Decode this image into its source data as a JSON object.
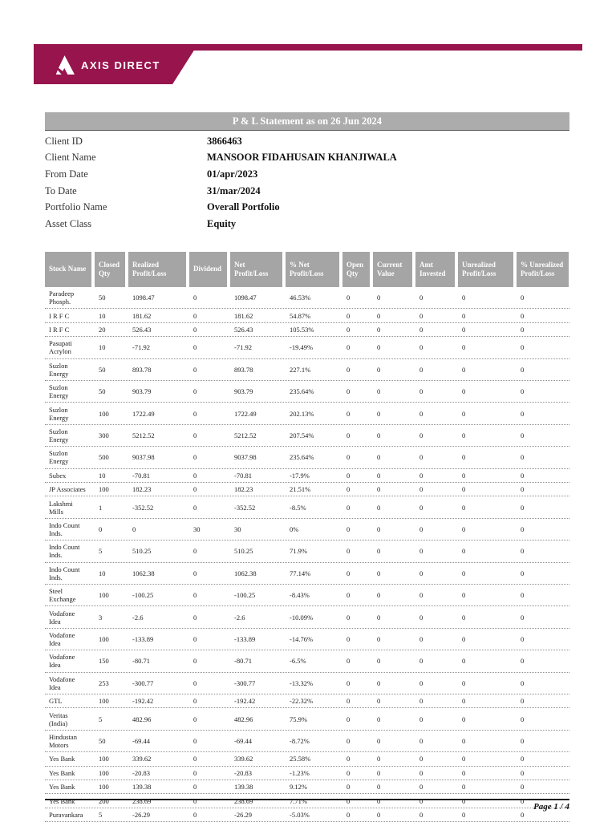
{
  "brand": {
    "name": "AXIS DIRECT",
    "color": "#97144D",
    "logo_icon": "axis-triangle-logo"
  },
  "title_bar": {
    "text": "P & L Statement as on 26 Jun 2024",
    "bg": "#ACACAC"
  },
  "client_info": {
    "rows": [
      {
        "label": "Client ID",
        "value": "3866463"
      },
      {
        "label": "Client Name",
        "value": "MANSOOR FIDAHUSAIN KHANJIWALA"
      },
      {
        "label": "From Date",
        "value": "01/apr/2023"
      },
      {
        "label": "To Date",
        "value": "31/mar/2024"
      },
      {
        "label": "Portfolio Name",
        "value": "Overall Portfolio"
      },
      {
        "label": "Asset Class",
        "value": "Equity"
      }
    ]
  },
  "table": {
    "header_bg": "#A5A5A5",
    "column_keys": [
      "stock-name",
      "closed-qty",
      "realized-profit-loss",
      "dividend",
      "net-profit-loss",
      "pct-net-profit-loss",
      "open-qty",
      "current-value",
      "amt-invested",
      "unrealized-profit-loss",
      "pct-unrealized-profit-loss"
    ],
    "headers": [
      "Stock Name",
      "Closed Qty",
      "Realized Profit/Loss",
      "Dividend",
      "Net Profit/Loss",
      "% Net Profit/Loss",
      "Open Qty",
      "Current Value",
      "Amt Invested",
      "Unrealized Profit/Loss",
      "% Unrealized Profit/Loss"
    ],
    "rows": [
      [
        "Paradeep Phosph.",
        "50",
        "1098.47",
        "0",
        "1098.47",
        "46.53%",
        "0",
        "0",
        "0",
        "0",
        "0"
      ],
      [
        "I R F C",
        "10",
        "181.62",
        "0",
        "181.62",
        "54.87%",
        "0",
        "0",
        "0",
        "0",
        "0"
      ],
      [
        "I R F C",
        "20",
        "526.43",
        "0",
        "526.43",
        "105.53%",
        "0",
        "0",
        "0",
        "0",
        "0"
      ],
      [
        "Pasupati Acrylon",
        "10",
        "-71.92",
        "0",
        "-71.92",
        "-19.49%",
        "0",
        "0",
        "0",
        "0",
        "0"
      ],
      [
        "Suzlon Energy",
        "50",
        "893.78",
        "0",
        "893.78",
        "227.1%",
        "0",
        "0",
        "0",
        "0",
        "0"
      ],
      [
        "Suzlon Energy",
        "50",
        "903.79",
        "0",
        "903.79",
        "235.64%",
        "0",
        "0",
        "0",
        "0",
        "0"
      ],
      [
        "Suzlon Energy",
        "100",
        "1722.49",
        "0",
        "1722.49",
        "202.13%",
        "0",
        "0",
        "0",
        "0",
        "0"
      ],
      [
        "Suzlon Energy",
        "300",
        "5212.52",
        "0",
        "5212.52",
        "207.54%",
        "0",
        "0",
        "0",
        "0",
        "0"
      ],
      [
        "Suzlon Energy",
        "500",
        "9037.98",
        "0",
        "9037.98",
        "235.64%",
        "0",
        "0",
        "0",
        "0",
        "0"
      ],
      [
        "Subex",
        "10",
        "-70.81",
        "0",
        "-70.81",
        "-17.9%",
        "0",
        "0",
        "0",
        "0",
        "0"
      ],
      [
        "JP Associates",
        "100",
        "182.23",
        "0",
        "182.23",
        "21.51%",
        "0",
        "0",
        "0",
        "0",
        "0"
      ],
      [
        "Lakshmi Mills",
        "1",
        "-352.52",
        "0",
        "-352.52",
        "-8.5%",
        "0",
        "0",
        "0",
        "0",
        "0"
      ],
      [
        "Indo Count Inds.",
        "0",
        "0",
        "30",
        "30",
        "0%",
        "0",
        "0",
        "0",
        "0",
        "0"
      ],
      [
        "Indo Count Inds.",
        "5",
        "510.25",
        "0",
        "510.25",
        "71.9%",
        "0",
        "0",
        "0",
        "0",
        "0"
      ],
      [
        "Indo Count Inds.",
        "10",
        "1062.38",
        "0",
        "1062.38",
        "77.14%",
        "0",
        "0",
        "0",
        "0",
        "0"
      ],
      [
        "Steel Exchange",
        "100",
        "-100.25",
        "0",
        "-100.25",
        "-8.43%",
        "0",
        "0",
        "0",
        "0",
        "0"
      ],
      [
        "Vodafone Idea",
        "3",
        "-2.6",
        "0",
        "-2.6",
        "-10.09%",
        "0",
        "0",
        "0",
        "0",
        "0"
      ],
      [
        "Vodafone Idea",
        "100",
        "-133.89",
        "0",
        "-133.89",
        "-14.76%",
        "0",
        "0",
        "0",
        "0",
        "0"
      ],
      [
        "Vodafone Idea",
        "150",
        "-80.71",
        "0",
        "-80.71",
        "-6.5%",
        "0",
        "0",
        "0",
        "0",
        "0"
      ],
      [
        "Vodafone Idea",
        "253",
        "-300.77",
        "0",
        "-300.77",
        "-13.32%",
        "0",
        "0",
        "0",
        "0",
        "0"
      ],
      [
        "GTL",
        "100",
        "-192.42",
        "0",
        "-192.42",
        "-22.32%",
        "0",
        "0",
        "0",
        "0",
        "0"
      ],
      [
        "Veritas (India)",
        "5",
        "482.96",
        "0",
        "482.96",
        "75.9%",
        "0",
        "0",
        "0",
        "0",
        "0"
      ],
      [
        "Hindustan Motors",
        "50",
        "-69.44",
        "0",
        "-69.44",
        "-8.72%",
        "0",
        "0",
        "0",
        "0",
        "0"
      ],
      [
        "Yes Bank",
        "100",
        "339.62",
        "0",
        "339.62",
        "25.58%",
        "0",
        "0",
        "0",
        "0",
        "0"
      ],
      [
        "Yes Bank",
        "100",
        "-20.83",
        "0",
        "-20.83",
        "-1.23%",
        "0",
        "0",
        "0",
        "0",
        "0"
      ],
      [
        "Yes Bank",
        "100",
        "139.38",
        "0",
        "139.38",
        "9.12%",
        "0",
        "0",
        "0",
        "0",
        "0"
      ],
      [
        "Yes Bank",
        "200",
        "238.69",
        "0",
        "238.69",
        "7.71%",
        "0",
        "0",
        "0",
        "0",
        "0"
      ],
      [
        "Puravankara",
        "5",
        "-26.29",
        "0",
        "-26.29",
        "-5.03%",
        "0",
        "0",
        "0",
        "0",
        "0"
      ]
    ]
  },
  "footer": {
    "page_label": "Page 1 / 4"
  }
}
